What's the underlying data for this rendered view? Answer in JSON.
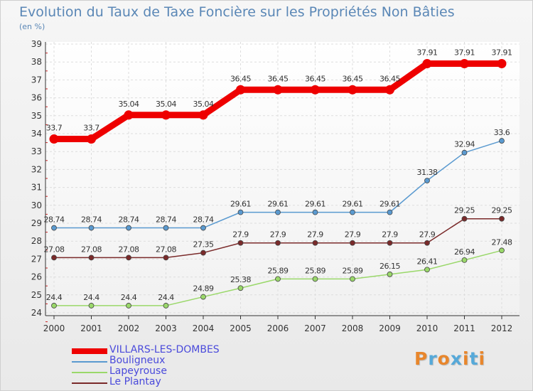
{
  "title": "Evolution du Taux de Taxe Foncière sur les Propriétés Non Bâties",
  "subtitle": "(en %)",
  "brand": {
    "text": "Proxiti",
    "colors": [
      "#e8862c",
      "#56a9d9",
      "#e8862c",
      "#56a9d9",
      "#e8862c",
      "#56a9d9",
      "#e8862c"
    ]
  },
  "chart_data": {
    "type": "line",
    "categories": [
      "2000",
      "2001",
      "2002",
      "2003",
      "2004",
      "2005",
      "2006",
      "2007",
      "2008",
      "2009",
      "2010",
      "2011",
      "2012"
    ],
    "ylim": [
      24,
      39
    ],
    "yticks": [
      24,
      25,
      26,
      27,
      28,
      29,
      30,
      31,
      32,
      33,
      34,
      35,
      36,
      37,
      38,
      39
    ],
    "grid": true,
    "legend_position": "bottom-left",
    "series": [
      {
        "name": "VILLARS-LES-DOMBES",
        "color": "#ee0000",
        "values": [
          33.7,
          33.7,
          35.04,
          35.04,
          35.04,
          36.45,
          36.45,
          36.45,
          36.45,
          36.45,
          37.91,
          37.91,
          37.91
        ],
        "labels": [
          "33.7",
          "33.7",
          "35.04",
          "35.04",
          "35.04",
          "36.45",
          "36.45",
          "36.45",
          "36.45",
          "36.45",
          "37.91",
          "37.91",
          "37.91"
        ]
      },
      {
        "name": "Bouligneux",
        "color": "#5a9ad0",
        "values": [
          28.74,
          28.74,
          28.74,
          28.74,
          28.74,
          29.61,
          29.61,
          29.61,
          29.61,
          29.61,
          31.38,
          32.94,
          33.6
        ],
        "labels": [
          "28.74",
          "28.74",
          "28.74",
          "28.74",
          "28.74",
          "29.61",
          "29.61",
          "29.61",
          "29.61",
          "29.61",
          "31.38",
          "32.94",
          "33.6"
        ]
      },
      {
        "name": "Lapeyrouse",
        "color": "#9ad86a",
        "values": [
          24.4,
          24.4,
          24.4,
          24.4,
          24.89,
          25.38,
          25.89,
          25.89,
          25.89,
          26.15,
          26.41,
          26.94,
          27.48
        ],
        "labels": [
          "24.4",
          "24.4",
          "24.4",
          "24.4",
          "24.89",
          "25.38",
          "25.89",
          "25.89",
          "25.89",
          "26.15",
          "26.41",
          "26.94",
          "27.48"
        ]
      },
      {
        "name": "Le Plantay",
        "color": "#7a2a2a",
        "values": [
          27.08,
          27.08,
          27.08,
          27.08,
          27.35,
          27.9,
          27.9,
          27.9,
          27.9,
          27.9,
          27.9,
          29.25,
          29.25
        ],
        "labels": [
          "27.08",
          "27.08",
          "27.08",
          "27.08",
          "27.35",
          "27.9",
          "27.9",
          "27.9",
          "27.9",
          "27.9",
          "27.9",
          "29.25",
          "29.25"
        ]
      }
    ]
  }
}
